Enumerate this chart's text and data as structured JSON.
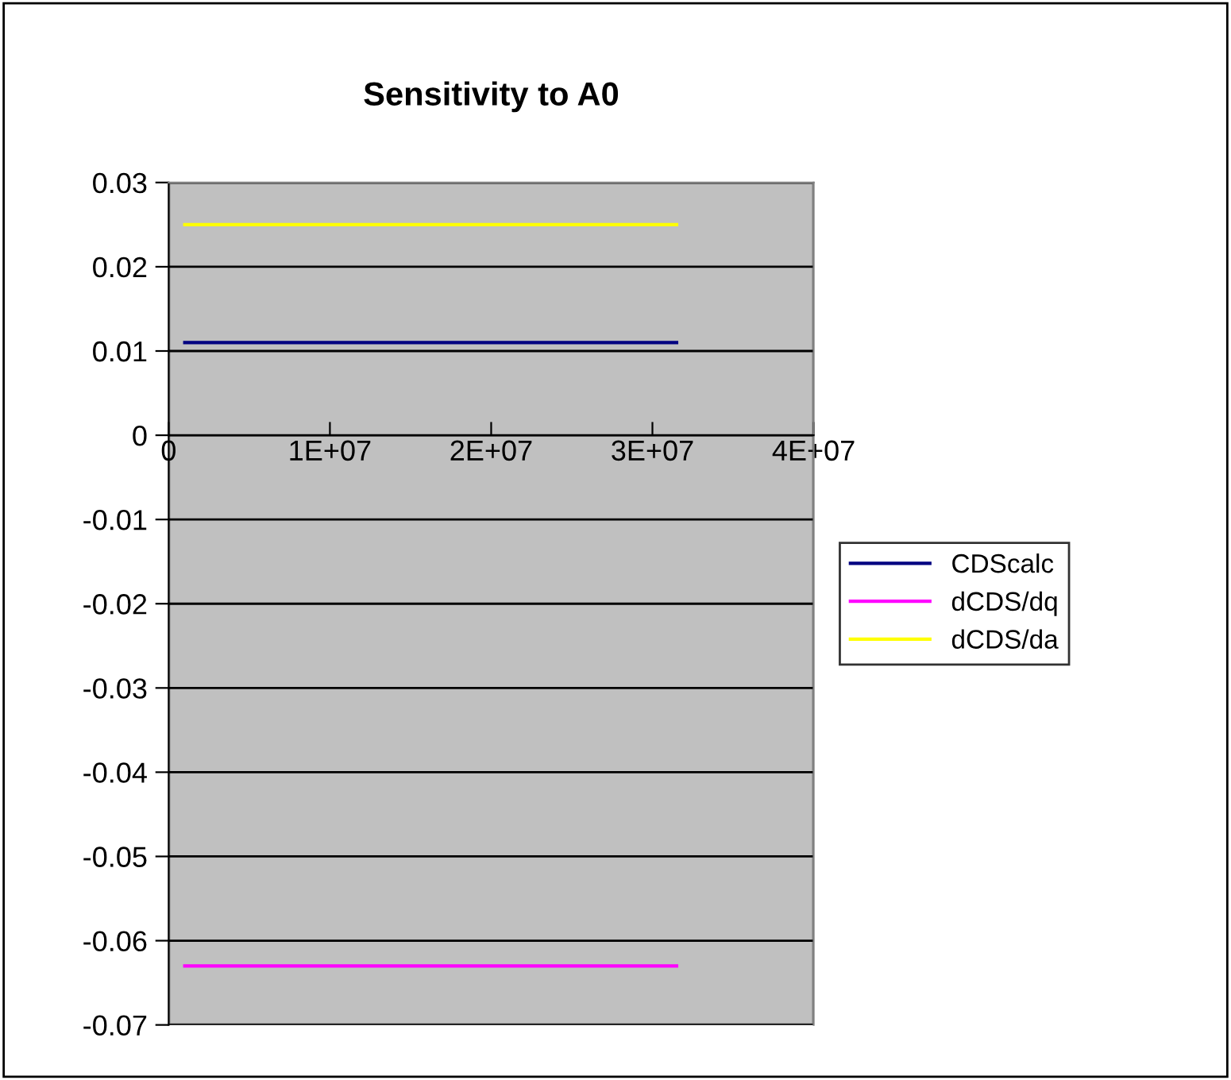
{
  "chart_data": {
    "type": "line",
    "title": "Sensitivity to A0",
    "x": [
      1000000,
      31500000
    ],
    "series": [
      {
        "name": "CDScalc",
        "color": "#000080",
        "values": [
          0.011,
          0.011
        ]
      },
      {
        "name": "dCDS/dq",
        "color": "#ff00ff",
        "values": [
          -0.063,
          -0.063
        ]
      },
      {
        "name": "dCDS/da",
        "color": "#ffff00",
        "values": [
          0.025,
          0.025
        ]
      }
    ],
    "xlim": [
      0,
      40000000
    ],
    "xticks": [
      {
        "value": 0,
        "label": "0"
      },
      {
        "value": 10000000,
        "label": "1E+07"
      },
      {
        "value": 20000000,
        "label": "2E+07"
      },
      {
        "value": 30000000,
        "label": "3E+07"
      },
      {
        "value": 40000000,
        "label": "4E+07"
      }
    ],
    "ylim": [
      -0.07,
      0.03
    ],
    "yticks": [
      0.03,
      0.02,
      0.01,
      0,
      -0.01,
      -0.02,
      -0.03,
      -0.04,
      -0.05,
      -0.06,
      -0.07
    ],
    "grid": "y",
    "legend": "right",
    "marker": "none",
    "line_style": "solid"
  }
}
